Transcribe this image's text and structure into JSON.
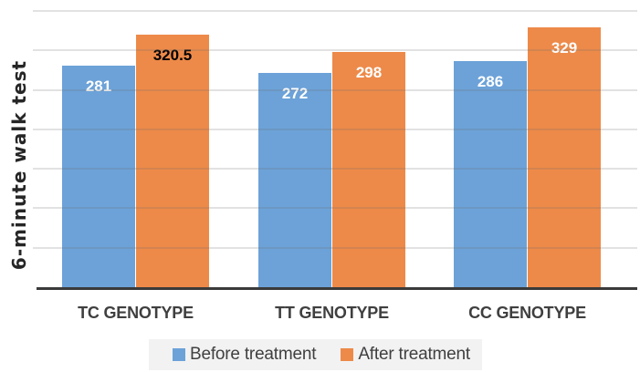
{
  "chart_data": {
    "type": "bar",
    "title": "",
    "xlabel": "",
    "ylabel": "6-minute walk test",
    "categories": [
      "TC GENOTYPE",
      "TT GENOTYPE",
      "CC GENOTYPE"
    ],
    "series": [
      {
        "name": "Before treatment",
        "color": "#6CA2D8",
        "values": [
          281,
          272,
          286
        ],
        "value_label_colors": [
          "#FFFFFF",
          "#FFFFFF",
          "#FFFFFF"
        ]
      },
      {
        "name": "After treatment",
        "color": "#ED8A49",
        "values": [
          320.5,
          298,
          329
        ],
        "value_label_colors": [
          "#000000",
          "#FFFFFF",
          "#FFFFFF"
        ]
      }
    ],
    "ylim": [
      0,
      350
    ],
    "gridline_step": 50,
    "grid": true,
    "y_tick_labels_visible": false,
    "data_labels_visible": true,
    "legend_position": "bottom"
  },
  "colors": {
    "background": "#FFFFFF",
    "gridline": "#E3E3E3",
    "axis_line": "#3A3A3A",
    "category_label": "#3F3F3F",
    "legend_background": "#F2F2F2",
    "legend_text": "#404040",
    "y_axis_title": "#262626"
  }
}
